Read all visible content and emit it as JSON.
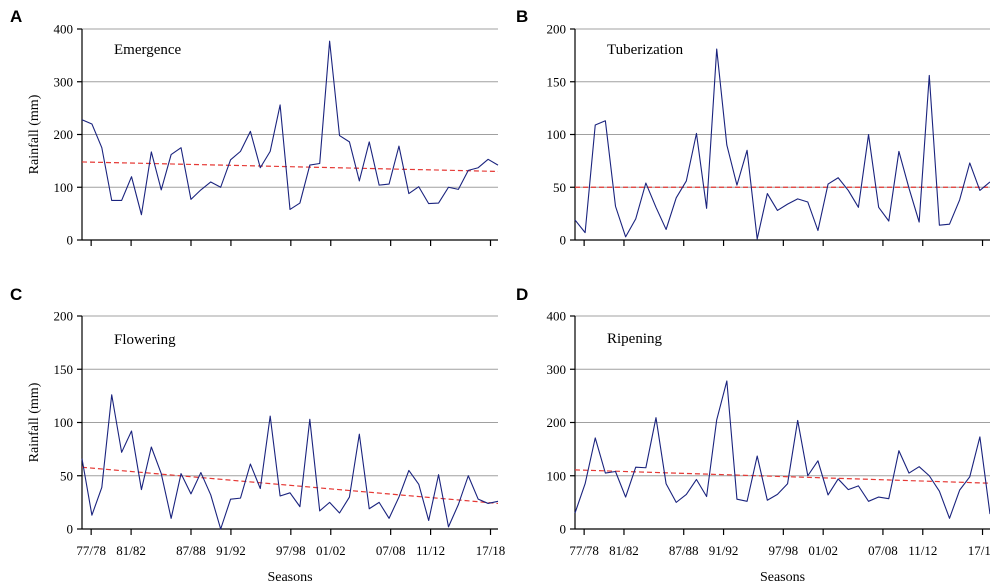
{
  "figure": {
    "x_tick_labels": [
      "77/78",
      "81/82",
      "87/88",
      "91/92",
      "97/98",
      "01/02",
      "07/08",
      "11/12",
      "17/18"
    ],
    "colors": {
      "series": "#1a237e",
      "trend": "#e53935",
      "grid": "#a0a0a0",
      "axis": "#000000"
    }
  },
  "chart_data": [
    {
      "panel": "A",
      "type": "line",
      "title": "Emergence",
      "xlabel": "",
      "ylabel": "Rainfall (mm)",
      "ylim": [
        0,
        400
      ],
      "yticks": [
        0,
        100,
        200,
        300,
        400
      ],
      "grid": true,
      "values": [
        228,
        220,
        175,
        75,
        75,
        120,
        48,
        167,
        95,
        162,
        175,
        77,
        95,
        110,
        100,
        152,
        168,
        206,
        137,
        168,
        256,
        58,
        70,
        142,
        145,
        377,
        198,
        186,
        112,
        186,
        104,
        106,
        178,
        88,
        101,
        69,
        70,
        100,
        96,
        132,
        137,
        153,
        142
      ],
      "trend": [
        148,
        130
      ]
    },
    {
      "panel": "B",
      "type": "line",
      "title": "Tuberization",
      "xlabel": "",
      "ylabel": "",
      "ylim": [
        0,
        200
      ],
      "yticks": [
        0,
        50,
        100,
        150,
        200
      ],
      "grid": true,
      "values": [
        19,
        7,
        109,
        113,
        32,
        3,
        20,
        54,
        31,
        10,
        40,
        56,
        101,
        30,
        181,
        90,
        52,
        85,
        1,
        44,
        28,
        34,
        39,
        36,
        9,
        53,
        59,
        47,
        31,
        100,
        31,
        18,
        84,
        49,
        17,
        156,
        14,
        15,
        38,
        73,
        47,
        55
      ],
      "trend": [
        50,
        50
      ]
    },
    {
      "panel": "C",
      "type": "line",
      "title": "Flowering",
      "xlabel": "Seasons",
      "ylabel": "Rainfall (mm)",
      "ylim": [
        0,
        200
      ],
      "yticks": [
        0,
        50,
        100,
        150,
        200
      ],
      "grid": true,
      "values": [
        66,
        13,
        39,
        126,
        72,
        92,
        37,
        77,
        52,
        10,
        52,
        33,
        53,
        32,
        0,
        28,
        29,
        61,
        38,
        106,
        31,
        34,
        21,
        103,
        17,
        25,
        15,
        30,
        89,
        19,
        25,
        10,
        30,
        55,
        42,
        8,
        51,
        2,
        23,
        50,
        28,
        24,
        26
      ],
      "trend": [
        58,
        24
      ]
    },
    {
      "panel": "D",
      "type": "line",
      "title": "Ripening",
      "xlabel": "Seasons",
      "ylabel": "",
      "ylim": [
        0,
        400
      ],
      "yticks": [
        0,
        100,
        200,
        300,
        400
      ],
      "grid": true,
      "values": [
        30,
        85,
        171,
        105,
        108,
        60,
        116,
        115,
        209,
        85,
        50,
        65,
        93,
        61,
        205,
        278,
        56,
        52,
        137,
        54,
        65,
        85,
        204,
        100,
        128,
        64,
        94,
        74,
        81,
        52,
        60,
        57,
        147,
        105,
        117,
        100,
        71,
        20,
        73,
        98,
        173,
        28
      ],
      "trend": [
        111,
        86
      ]
    }
  ]
}
